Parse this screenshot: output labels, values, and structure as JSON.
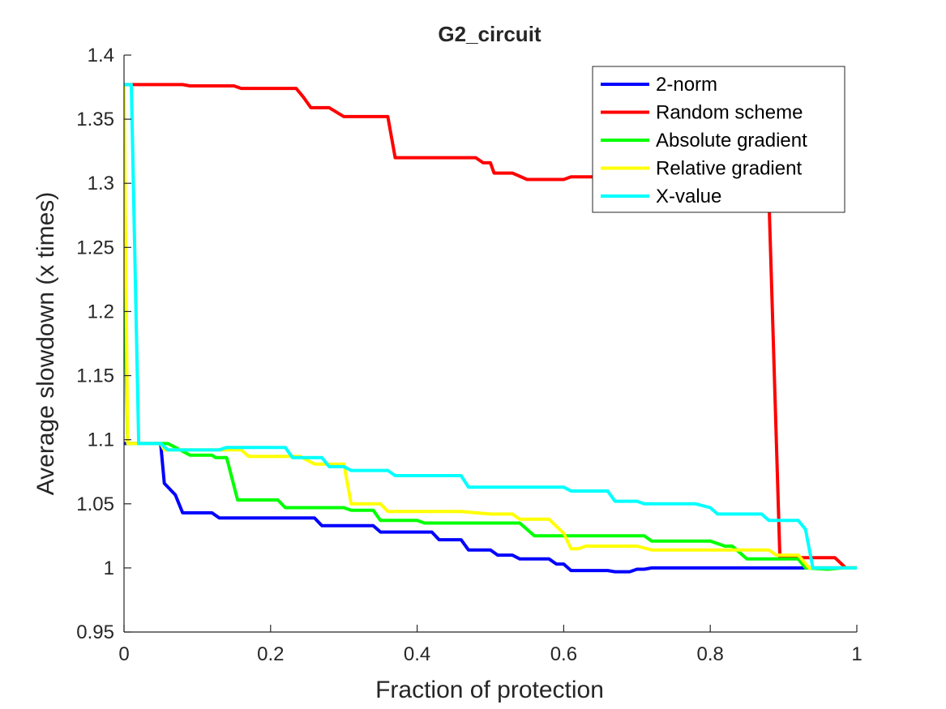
{
  "chart_data": {
    "type": "line",
    "title": "G2_circuit",
    "xlabel": "Fraction of protection",
    "ylabel": "Average slowdown (x times)",
    "xlim": [
      0,
      1
    ],
    "ylim": [
      0.95,
      1.4
    ],
    "xticks": [
      0,
      0.2,
      0.4,
      0.6,
      0.8,
      1
    ],
    "xtick_labels": [
      "0",
      "0.2",
      "0.4",
      "0.6",
      "0.8",
      "1"
    ],
    "yticks": [
      0.95,
      1,
      1.05,
      1.1,
      1.15,
      1.2,
      1.25,
      1.3,
      1.35,
      1.4
    ],
    "ytick_labels": [
      "0.95",
      "1",
      "1.05",
      "1.1",
      "1.15",
      "1.2",
      "1.25",
      "1.3",
      "1.35",
      "1.4"
    ],
    "grid": false,
    "legend_position": "top-right",
    "series": [
      {
        "name": "2-norm",
        "color": "#0000ff",
        "points": [
          [
            0,
            1.097
          ],
          [
            0.05,
            1.097
          ],
          [
            0.055,
            1.066
          ],
          [
            0.07,
            1.057
          ],
          [
            0.08,
            1.043
          ],
          [
            0.12,
            1.043
          ],
          [
            0.13,
            1.039
          ],
          [
            0.26,
            1.039
          ],
          [
            0.27,
            1.033
          ],
          [
            0.34,
            1.033
          ],
          [
            0.35,
            1.028
          ],
          [
            0.42,
            1.028
          ],
          [
            0.43,
            1.022
          ],
          [
            0.46,
            1.022
          ],
          [
            0.47,
            1.014
          ],
          [
            0.5,
            1.014
          ],
          [
            0.51,
            1.01
          ],
          [
            0.53,
            1.01
          ],
          [
            0.54,
            1.007
          ],
          [
            0.58,
            1.007
          ],
          [
            0.59,
            1.003
          ],
          [
            0.6,
            1.003
          ],
          [
            0.61,
            0.998
          ],
          [
            0.66,
            0.998
          ],
          [
            0.67,
            0.997
          ],
          [
            0.69,
            0.997
          ],
          [
            0.7,
            0.999
          ],
          [
            0.71,
            0.999
          ],
          [
            0.72,
            1.0
          ],
          [
            1.0,
            1.0
          ]
        ]
      },
      {
        "name": "Random scheme",
        "color": "#ff0000",
        "points": [
          [
            0,
            1.377
          ],
          [
            0.08,
            1.377
          ],
          [
            0.09,
            1.376
          ],
          [
            0.15,
            1.376
          ],
          [
            0.16,
            1.374
          ],
          [
            0.235,
            1.374
          ],
          [
            0.245,
            1.367
          ],
          [
            0.255,
            1.359
          ],
          [
            0.28,
            1.359
          ],
          [
            0.3,
            1.352
          ],
          [
            0.36,
            1.352
          ],
          [
            0.37,
            1.32
          ],
          [
            0.48,
            1.32
          ],
          [
            0.49,
            1.316
          ],
          [
            0.5,
            1.316
          ],
          [
            0.505,
            1.308
          ],
          [
            0.53,
            1.308
          ],
          [
            0.55,
            1.303
          ],
          [
            0.58,
            1.303
          ],
          [
            0.6,
            1.303
          ],
          [
            0.61,
            1.305
          ],
          [
            0.7,
            1.305
          ],
          [
            0.72,
            1.3
          ],
          [
            0.83,
            1.3
          ],
          [
            0.88,
            1.29
          ],
          [
            0.895,
            1.008
          ],
          [
            0.97,
            1.008
          ],
          [
            0.985,
            1.0
          ],
          [
            1.0,
            1.0
          ]
        ]
      },
      {
        "name": "Absolute gradient",
        "color": "#00ff00",
        "points": [
          [
            0,
            1.24
          ],
          [
            0.005,
            1.097
          ],
          [
            0.06,
            1.097
          ],
          [
            0.09,
            1.088
          ],
          [
            0.12,
            1.088
          ],
          [
            0.125,
            1.086
          ],
          [
            0.14,
            1.086
          ],
          [
            0.155,
            1.053
          ],
          [
            0.21,
            1.053
          ],
          [
            0.22,
            1.047
          ],
          [
            0.3,
            1.047
          ],
          [
            0.31,
            1.045
          ],
          [
            0.34,
            1.045
          ],
          [
            0.35,
            1.037
          ],
          [
            0.4,
            1.037
          ],
          [
            0.41,
            1.035
          ],
          [
            0.54,
            1.035
          ],
          [
            0.56,
            1.025
          ],
          [
            0.71,
            1.025
          ],
          [
            0.72,
            1.021
          ],
          [
            0.74,
            1.021
          ],
          [
            0.8,
            1.021
          ],
          [
            0.82,
            1.017
          ],
          [
            0.83,
            1.017
          ],
          [
            0.84,
            1.012
          ],
          [
            0.85,
            1.007
          ],
          [
            0.92,
            1.007
          ],
          [
            0.93,
            1.0
          ],
          [
            0.96,
            0.999
          ],
          [
            0.98,
            1.0
          ],
          [
            1.0,
            1.0
          ]
        ]
      },
      {
        "name": "Relative gradient",
        "color": "#ffff00",
        "points": [
          [
            0,
            1.375
          ],
          [
            0.005,
            1.097
          ],
          [
            0.05,
            1.097
          ],
          [
            0.055,
            1.092
          ],
          [
            0.16,
            1.092
          ],
          [
            0.17,
            1.087
          ],
          [
            0.24,
            1.087
          ],
          [
            0.26,
            1.081
          ],
          [
            0.3,
            1.081
          ],
          [
            0.31,
            1.05
          ],
          [
            0.35,
            1.05
          ],
          [
            0.36,
            1.044
          ],
          [
            0.46,
            1.044
          ],
          [
            0.5,
            1.042
          ],
          [
            0.53,
            1.042
          ],
          [
            0.54,
            1.038
          ],
          [
            0.58,
            1.038
          ],
          [
            0.6,
            1.027
          ],
          [
            0.61,
            1.015
          ],
          [
            0.62,
            1.015
          ],
          [
            0.63,
            1.017
          ],
          [
            0.7,
            1.017
          ],
          [
            0.72,
            1.014
          ],
          [
            0.84,
            1.014
          ],
          [
            0.88,
            1.014
          ],
          [
            0.89,
            1.01
          ],
          [
            0.92,
            1.01
          ],
          [
            0.935,
            1.0
          ],
          [
            1.0,
            1.0
          ]
        ]
      },
      {
        "name": "X-value",
        "color": "#00ffff",
        "points": [
          [
            0,
            1.377
          ],
          [
            0.01,
            1.377
          ],
          [
            0.02,
            1.097
          ],
          [
            0.05,
            1.097
          ],
          [
            0.06,
            1.092
          ],
          [
            0.13,
            1.092
          ],
          [
            0.14,
            1.094
          ],
          [
            0.22,
            1.094
          ],
          [
            0.23,
            1.086
          ],
          [
            0.27,
            1.086
          ],
          [
            0.28,
            1.079
          ],
          [
            0.3,
            1.079
          ],
          [
            0.31,
            1.076
          ],
          [
            0.36,
            1.076
          ],
          [
            0.37,
            1.072
          ],
          [
            0.46,
            1.072
          ],
          [
            0.47,
            1.063
          ],
          [
            0.6,
            1.063
          ],
          [
            0.61,
            1.06
          ],
          [
            0.66,
            1.06
          ],
          [
            0.67,
            1.052
          ],
          [
            0.7,
            1.052
          ],
          [
            0.71,
            1.05
          ],
          [
            0.78,
            1.05
          ],
          [
            0.8,
            1.047
          ],
          [
            0.81,
            1.042
          ],
          [
            0.87,
            1.042
          ],
          [
            0.88,
            1.037
          ],
          [
            0.92,
            1.037
          ],
          [
            0.93,
            1.03
          ],
          [
            0.94,
            1.0
          ],
          [
            1.0,
            1.0
          ]
        ]
      }
    ]
  }
}
